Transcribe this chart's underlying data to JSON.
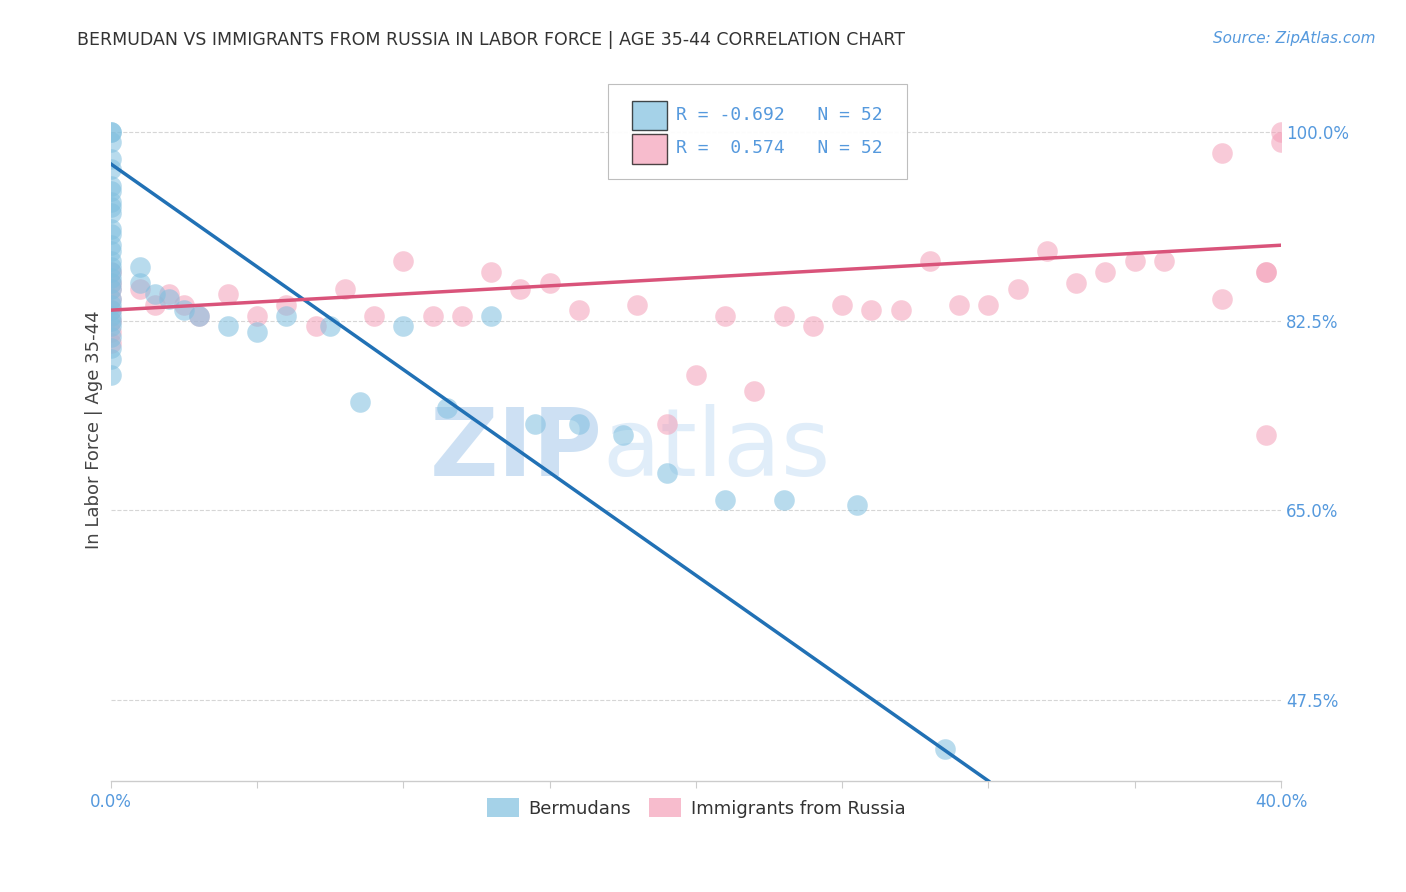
{
  "title": "BERMUDAN VS IMMIGRANTS FROM RUSSIA IN LABOR FORCE | AGE 35-44 CORRELATION CHART",
  "source": "Source: ZipAtlas.com",
  "ylabel": "In Labor Force | Age 35-44",
  "xlim": [
    0.0,
    0.4
  ],
  "ylim": [
    0.4,
    1.05
  ],
  "xticks": [
    0.0,
    0.05,
    0.1,
    0.15,
    0.2,
    0.25,
    0.3,
    0.35,
    0.4
  ],
  "ytick_positions": [
    0.475,
    0.55,
    0.625,
    0.7,
    0.775,
    0.85,
    0.925,
    1.0
  ],
  "right_ytick_positions": [
    1.0,
    0.825,
    0.65,
    0.475
  ],
  "right_ytick_labels": [
    "100.0%",
    "82.5%",
    "65.0%",
    "47.5%"
  ],
  "xtick_labels": [
    "0.0%",
    "",
    "",
    "",
    "",
    "",
    "",
    "",
    "40.0%"
  ],
  "watermark_zip": "ZIP",
  "watermark_atlas": "atlas",
  "blue_R": "-0.692",
  "blue_N": "52",
  "pink_R": "0.574",
  "pink_N": "52",
  "blue_color": "#7fbfdf",
  "pink_color": "#f4a0b8",
  "blue_line_color": "#2171b5",
  "pink_line_color": "#d9537a",
  "grid_color": "#cccccc",
  "blue_line_x0": 0.0,
  "blue_line_y0": 0.97,
  "blue_line_x1": 0.3,
  "blue_line_y1": 0.4,
  "pink_line_x0": 0.0,
  "pink_line_y0": 0.835,
  "pink_line_x1": 0.4,
  "pink_line_y1": 0.895,
  "blue_scatter_x": [
    0.0,
    0.0,
    0.0,
    0.0,
    0.0,
    0.0,
    0.0,
    0.0,
    0.0,
    0.0,
    0.0,
    0.0,
    0.0,
    0.0,
    0.0,
    0.0,
    0.0,
    0.0,
    0.0,
    0.0,
    0.0,
    0.0,
    0.0,
    0.0,
    0.0,
    0.0,
    0.0,
    0.0,
    0.0,
    0.0,
    0.01,
    0.01,
    0.015,
    0.02,
    0.025,
    0.03,
    0.04,
    0.05,
    0.06,
    0.075,
    0.085,
    0.1,
    0.115,
    0.13,
    0.145,
    0.16,
    0.175,
    0.19,
    0.21,
    0.23,
    0.255,
    0.285
  ],
  "blue_scatter_y": [
    1.0,
    1.0,
    0.99,
    0.975,
    0.965,
    0.95,
    0.945,
    0.935,
    0.93,
    0.925,
    0.91,
    0.905,
    0.895,
    0.89,
    0.88,
    0.875,
    0.87,
    0.865,
    0.86,
    0.855,
    0.845,
    0.84,
    0.835,
    0.83,
    0.825,
    0.82,
    0.81,
    0.8,
    0.79,
    0.775,
    0.875,
    0.86,
    0.85,
    0.845,
    0.835,
    0.83,
    0.82,
    0.815,
    0.83,
    0.82,
    0.75,
    0.82,
    0.745,
    0.83,
    0.73,
    0.73,
    0.72,
    0.685,
    0.66,
    0.66,
    0.655,
    0.43
  ],
  "pink_scatter_x": [
    0.0,
    0.0,
    0.0,
    0.0,
    0.0,
    0.0,
    0.0,
    0.0,
    0.01,
    0.015,
    0.02,
    0.025,
    0.03,
    0.04,
    0.05,
    0.06,
    0.07,
    0.08,
    0.09,
    0.1,
    0.11,
    0.12,
    0.13,
    0.14,
    0.15,
    0.16,
    0.18,
    0.2,
    0.22,
    0.24,
    0.26,
    0.28,
    0.3,
    0.32,
    0.34,
    0.36,
    0.38,
    0.395,
    0.4,
    0.4,
    0.395,
    0.38,
    0.35,
    0.33,
    0.31,
    0.29,
    0.27,
    0.25,
    0.23,
    0.21,
    0.19,
    0.395
  ],
  "pink_scatter_y": [
    0.87,
    0.86,
    0.855,
    0.845,
    0.835,
    0.825,
    0.815,
    0.805,
    0.855,
    0.84,
    0.85,
    0.84,
    0.83,
    0.85,
    0.83,
    0.84,
    0.82,
    0.855,
    0.83,
    0.88,
    0.83,
    0.83,
    0.87,
    0.855,
    0.86,
    0.835,
    0.84,
    0.775,
    0.76,
    0.82,
    0.835,
    0.88,
    0.84,
    0.89,
    0.87,
    0.88,
    0.845,
    0.87,
    1.0,
    0.99,
    0.87,
    0.98,
    0.88,
    0.86,
    0.855,
    0.84,
    0.835,
    0.84,
    0.83,
    0.83,
    0.73,
    0.72
  ]
}
